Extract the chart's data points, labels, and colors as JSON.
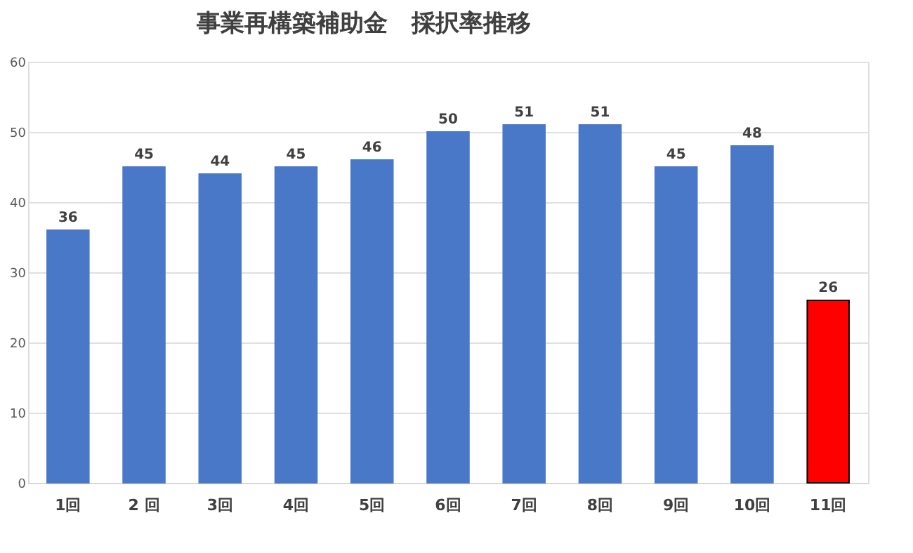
{
  "chart_data": {
    "type": "bar",
    "title": "事業再構築補助金　採択率推移",
    "categories": [
      "1回",
      "2 回",
      "3回",
      "4回",
      "5回",
      "6回",
      "7回",
      "8回",
      "9回",
      "10回",
      "11回"
    ],
    "values": [
      36,
      45,
      44,
      45,
      46,
      50,
      51,
      51,
      45,
      48,
      26
    ],
    "colors": [
      "#4a78c8",
      "#4a78c8",
      "#4a78c8",
      "#4a78c8",
      "#4a78c8",
      "#4a78c8",
      "#4a78c8",
      "#4a78c8",
      "#4a78c8",
      "#4a78c8",
      "#ff0000"
    ],
    "ylim": [
      0,
      60
    ],
    "yticks": [
      0,
      10,
      20,
      30,
      40,
      50,
      60
    ],
    "grid": "y",
    "data_labels": true
  }
}
